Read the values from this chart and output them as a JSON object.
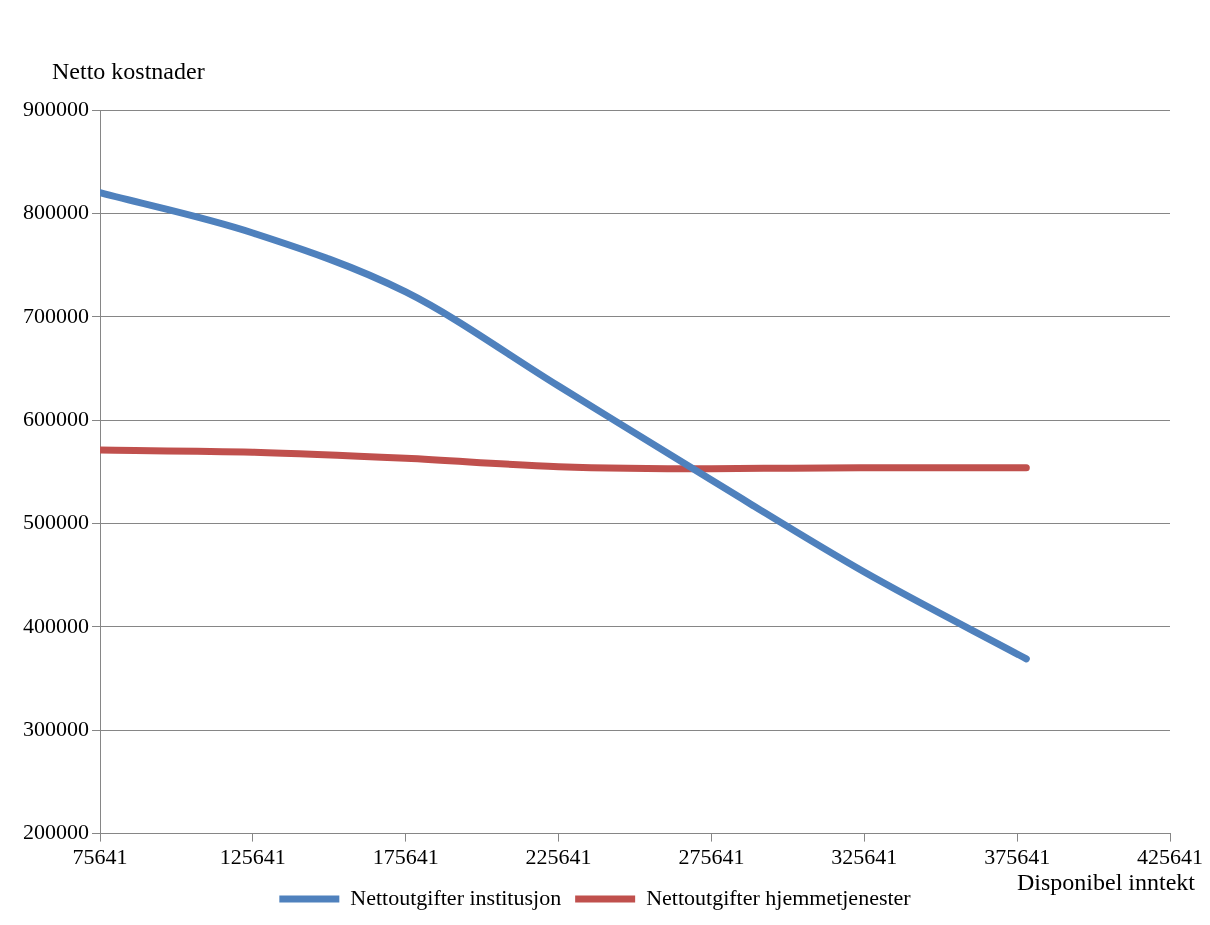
{
  "chart_data": {
    "type": "line",
    "xlabel": "Disponibel inntekt",
    "ylabel": "Netto kostnader",
    "xlim": [
      75641,
      425641
    ],
    "xticks": [
      75641,
      125641,
      175641,
      225641,
      275641,
      325641,
      375641,
      425641
    ],
    "ylim": [
      200000,
      900000
    ],
    "yticks": [
      200000,
      300000,
      400000,
      500000,
      600000,
      700000,
      800000,
      900000
    ],
    "grid": "y",
    "legend": "bottom",
    "marker": "none",
    "line_style": "solid",
    "series": [
      {
        "name": "Nettoutgifter institusjon",
        "color": "#4f81bd",
        "x": [
          75641,
          125641,
          175641,
          225641,
          275641,
          325641,
          378641
        ],
        "values": [
          820000,
          781000,
          724000,
          633000,
          542000,
          453000,
          369000
        ]
      },
      {
        "name": "Nettoutgifter hjemmetjenester",
        "color": "#c0504d",
        "x": [
          75641,
          125641,
          175641,
          225641,
          275641,
          325641,
          378641
        ],
        "values": [
          571000,
          569000,
          563000,
          555000,
          553000,
          554000,
          554000
        ]
      }
    ]
  }
}
